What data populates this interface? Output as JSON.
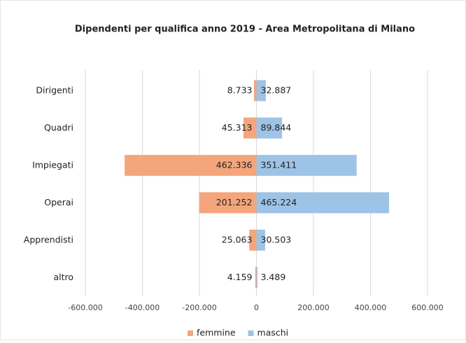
{
  "chart_data": {
    "type": "bar",
    "orientation": "horizontal",
    "title": "Dipendenti per qualifica anno 2019 - Area Metropolitana di Milano",
    "categories": [
      "Dirigenti",
      "Quadri",
      "Impiegati",
      "Operai",
      "Apprendisti",
      "altro"
    ],
    "series": [
      {
        "name": "femmine",
        "color": "#f4a57c",
        "values": [
          -8733,
          -45313,
          -462336,
          -201252,
          -25063,
          -4159
        ],
        "value_labels": [
          "8.733",
          "45.313",
          "462.336",
          "201.252",
          "25.063",
          "4.159"
        ]
      },
      {
        "name": "maschi",
        "color": "#9dc3e6",
        "values": [
          32887,
          89844,
          351411,
          465224,
          30503,
          3489
        ],
        "value_labels": [
          "32.887",
          "89.844",
          "351.411",
          "465.224",
          "30.503",
          "3.489"
        ]
      }
    ],
    "xlim": [
      -600000,
      600000
    ],
    "xticks": [
      {
        "value": -600000,
        "label": "-600.000"
      },
      {
        "value": -400000,
        "label": "-400.000"
      },
      {
        "value": -200000,
        "label": "-200.000"
      },
      0,
      {
        "value": 200000,
        "label": "200.000"
      },
      {
        "value": 400000,
        "label": "400.000"
      },
      {
        "value": 600000,
        "label": "600.000"
      }
    ],
    "grid": true,
    "legend": "bottom"
  }
}
